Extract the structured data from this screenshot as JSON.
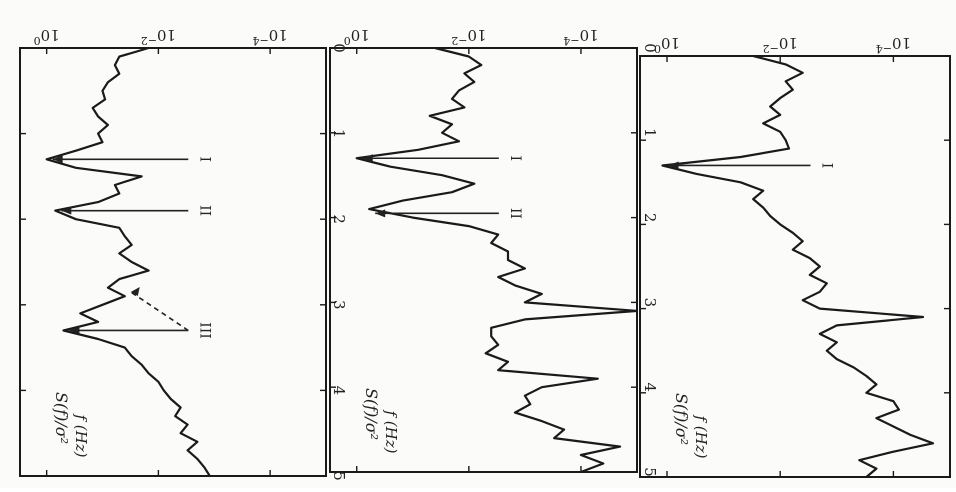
{
  "figure": {
    "panels": [
      {
        "ylabel": "S(f)/σ²",
        "xlabel": "f (Hz)",
        "peaks": [
          {
            "label": "I",
            "f": 1.3
          }
        ]
      },
      {
        "ylabel": "S(f)/σ²",
        "xlabel": "f (Hz)",
        "peaks": [
          {
            "label": "I",
            "f": 1.3
          },
          {
            "label": "II",
            "f": 1.95
          }
        ]
      },
      {
        "ylabel": "S(f)/σ²",
        "xlabel": "f (Hz)",
        "peaks": [
          {
            "label": "I",
            "f": 1.3
          },
          {
            "label": "II",
            "f": 1.9
          },
          {
            "label": "III",
            "f": 3.3,
            "secondary_f": 2.85
          }
        ]
      }
    ]
  },
  "chart_data": [
    {
      "type": "line",
      "title": "",
      "xlabel": "f (Hz)",
      "ylabel": "S(f)/σ²",
      "xlim": [
        0,
        5
      ],
      "ylim": [
        1e-05,
        3
      ],
      "yscale": "log",
      "xticks": [
        "0",
        "1",
        "2",
        "3",
        "4",
        "5"
      ],
      "yticks": [
        "10^-4",
        "10^-2",
        "10^0"
      ],
      "x": [
        0,
        0.1,
        0.2,
        0.3,
        0.4,
        0.5,
        0.6,
        0.7,
        0.8,
        0.9,
        1.0,
        1.1,
        1.2,
        1.3,
        1.4,
        1.5,
        1.6,
        1.7,
        1.8,
        1.9,
        2.0,
        2.1,
        2.2,
        2.3,
        2.4,
        2.5,
        2.6,
        2.7,
        2.8,
        2.9,
        3.0,
        3.1,
        3.2,
        3.3,
        3.4,
        3.5,
        3.6,
        3.7,
        3.8,
        3.9,
        4.0,
        4.1,
        4.2,
        4.3,
        4.4,
        4.5,
        4.6,
        4.7,
        4.8,
        4.9,
        5.0
      ],
      "y": [
        0.03,
        0.008,
        0.004,
        0.008,
        0.006,
        0.01,
        0.015,
        0.01,
        0.02,
        0.01,
        0.008,
        0.007,
        0.05,
        1.2,
        0.3,
        0.05,
        0.02,
        0.03,
        0.02,
        0.015,
        0.01,
        0.006,
        0.004,
        0.006,
        0.003,
        0.002,
        0.003,
        0.0015,
        0.002,
        0.004,
        0.002,
        3e-05,
        0.001,
        0.002,
        0.001,
        0.0015,
        0.001,
        0.0005,
        0.0003,
        0.0002,
        0.0003,
        0.0001,
        8e-05,
        0.0002,
        0.0001,
        5e-05,
        2e-05,
        0.0001,
        0.0004,
        0.0002,
        0.0003
      ]
    },
    {
      "type": "line",
      "title": "",
      "xlabel": "f (Hz)",
      "ylabel": "S(f)/σ²",
      "xlim": [
        0,
        5
      ],
      "ylim": [
        1e-05,
        3
      ],
      "yscale": "log",
      "xticks": [
        "0",
        "1",
        "2",
        "3",
        "4",
        "5"
      ],
      "yticks": [
        "10^-4",
        "10^-2",
        "10^0"
      ],
      "x": [
        0,
        0.1,
        0.2,
        0.3,
        0.4,
        0.5,
        0.6,
        0.7,
        0.8,
        0.9,
        1.0,
        1.1,
        1.2,
        1.3,
        1.4,
        1.5,
        1.6,
        1.7,
        1.8,
        1.9,
        2.0,
        2.1,
        2.2,
        2.3,
        2.4,
        2.5,
        2.6,
        2.7,
        2.8,
        2.9,
        3.0,
        3.1,
        3.2,
        3.3,
        3.4,
        3.5,
        3.6,
        3.7,
        3.8,
        3.9,
        4.0,
        4.1,
        4.2,
        4.3,
        4.4,
        4.5,
        4.6,
        4.7,
        4.8,
        4.9,
        5.0
      ],
      "y": [
        0.04,
        0.01,
        0.006,
        0.012,
        0.008,
        0.015,
        0.02,
        0.012,
        0.05,
        0.02,
        0.03,
        0.015,
        0.08,
        1.0,
        0.25,
        0.03,
        0.008,
        0.02,
        0.15,
        0.6,
        0.1,
        0.01,
        0.003,
        0.004,
        0.002,
        0.002,
        0.001,
        0.003,
        0.0015,
        0.0005,
        0.001,
        1e-05,
        0.001,
        0.004,
        0.004,
        0.003,
        0.005,
        0.002,
        0.003,
        5e-05,
        0.0005,
        0.001,
        0.0008,
        0.0015,
        0.0005,
        0.0002,
        0.0003,
        2e-05,
        0.0001,
        4e-05,
        0.0001
      ]
    },
    {
      "type": "line",
      "title": "",
      "xlabel": "f (Hz)",
      "ylabel": "S(f)/σ²",
      "xlim": [
        0,
        5
      ],
      "ylim": [
        1e-05,
        3
      ],
      "yscale": "log",
      "xticks": [
        "0",
        "1",
        "2",
        "3",
        "4",
        "5"
      ],
      "yticks": [
        "10^-4",
        "10^-2",
        "10^0"
      ],
      "x": [
        0,
        0.1,
        0.2,
        0.3,
        0.4,
        0.5,
        0.6,
        0.7,
        0.8,
        0.9,
        1.0,
        1.1,
        1.2,
        1.3,
        1.4,
        1.5,
        1.6,
        1.7,
        1.8,
        1.9,
        2.0,
        2.1,
        2.2,
        2.3,
        2.4,
        2.5,
        2.6,
        2.7,
        2.8,
        2.9,
        3.0,
        3.1,
        3.2,
        3.3,
        3.4,
        3.5,
        3.6,
        3.7,
        3.8,
        3.9,
        4.0,
        4.1,
        4.2,
        4.3,
        4.4,
        4.5,
        4.6,
        4.7,
        4.8,
        4.9,
        5.0
      ],
      "y": [
        0.015,
        0.05,
        0.06,
        0.05,
        0.08,
        0.1,
        0.09,
        0.15,
        0.12,
        0.08,
        0.12,
        0.1,
        0.3,
        1.0,
        0.3,
        0.02,
        0.06,
        0.05,
        0.12,
        0.7,
        0.3,
        0.05,
        0.04,
        0.03,
        0.05,
        0.03,
        0.015,
        0.05,
        0.08,
        0.04,
        0.1,
        0.25,
        0.12,
        0.5,
        0.12,
        0.04,
        0.03,
        0.02,
        0.015,
        0.01,
        0.008,
        0.006,
        0.004,
        0.005,
        0.003,
        0.004,
        0.002,
        0.003,
        0.002,
        0.0015,
        0.0012
      ]
    }
  ]
}
